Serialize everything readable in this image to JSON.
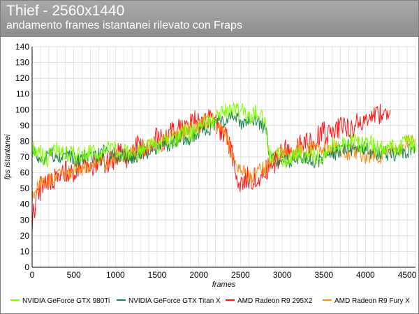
{
  "chart_data": {
    "type": "line",
    "title": "Thief - 2560x1440",
    "subtitle": "andamento frames istantanei rilevato con Fraps",
    "xlabel": "frames",
    "ylabel": "fps istantanei",
    "xlim": [
      0,
      4600
    ],
    "ylim": [
      0,
      140
    ],
    "x_ticks": [
      "0",
      "500",
      "1000",
      "1500",
      "2000",
      "2500",
      "3000",
      "3500",
      "4000",
      "4500"
    ],
    "y_ticks": [
      "0",
      "10",
      "20",
      "30",
      "40",
      "50",
      "60",
      "70",
      "80",
      "90",
      "100",
      "110",
      "120",
      "130",
      "140"
    ],
    "grid": true,
    "legend_position": "bottom",
    "series": [
      {
        "name": "NVIDIA GeForce GTX 980Ti",
        "color": "#7fff00",
        "x": [
          0,
          100,
          200,
          300,
          400,
          500,
          600,
          700,
          800,
          900,
          1000,
          1100,
          1200,
          1300,
          1400,
          1500,
          1600,
          1700,
          1800,
          1900,
          2000,
          2100,
          2200,
          2300,
          2400,
          2500,
          2600,
          2700,
          2800,
          2850,
          2900,
          3000,
          3100,
          3200,
          3300,
          3400,
          3500,
          3600,
          3700,
          3800,
          3900,
          4000,
          4100,
          4200,
          4300,
          4400,
          4500,
          4600
        ],
        "y": [
          75,
          72,
          70,
          73,
          74,
          70,
          72,
          71,
          73,
          76,
          74,
          72,
          73,
          74,
          76,
          78,
          80,
          82,
          84,
          86,
          88,
          92,
          95,
          99,
          100,
          98,
          97,
          98,
          93,
          70,
          71,
          70,
          68,
          72,
          71,
          70,
          72,
          75,
          78,
          80,
          80,
          78,
          77,
          75,
          76,
          75,
          78,
          80
        ]
      },
      {
        "name": "NVIDIA GeForce GTX Titan X",
        "color": "#1e8449",
        "x": [
          0,
          100,
          200,
          300,
          400,
          500,
          600,
          700,
          800,
          900,
          1000,
          1100,
          1200,
          1300,
          1400,
          1500,
          1600,
          1700,
          1800,
          1900,
          2000,
          2100,
          2200,
          2300,
          2400,
          2500,
          2600,
          2700,
          2800,
          2850,
          2900,
          3000,
          3100,
          3200,
          3300,
          3400,
          3500,
          3600,
          3700,
          3800,
          3900,
          4000,
          4100,
          4200,
          4300,
          4400,
          4500,
          4600
        ],
        "y": [
          72,
          71,
          70,
          72,
          70,
          69,
          70,
          70,
          72,
          73,
          72,
          70,
          71,
          72,
          74,
          75,
          77,
          79,
          81,
          83,
          85,
          88,
          90,
          93,
          95,
          93,
          92,
          93,
          90,
          68,
          69,
          68,
          66,
          70,
          69,
          68,
          70,
          72,
          75,
          76,
          76,
          75,
          74,
          72,
          73,
          72,
          74,
          77
        ]
      },
      {
        "name": "AMD Radeon R9 295X2",
        "color": "#ff1a1a",
        "x": [
          0,
          50,
          100,
          200,
          300,
          400,
          500,
          600,
          700,
          800,
          900,
          1000,
          1100,
          1200,
          1300,
          1400,
          1500,
          1600,
          1700,
          1800,
          1900,
          2000,
          2100,
          2200,
          2300,
          2400,
          2500,
          2600,
          2700,
          2800,
          2850,
          2900,
          3000,
          3100,
          3200,
          3300,
          3400,
          3500,
          3600,
          3700,
          3800,
          3900,
          4000,
          4100,
          4200,
          4300
        ],
        "y": [
          30,
          45,
          50,
          55,
          58,
          60,
          62,
          63,
          64,
          66,
          67,
          70,
          71,
          73,
          76,
          78,
          80,
          83,
          86,
          88,
          90,
          92,
          93,
          93,
          85,
          70,
          55,
          55,
          58,
          60,
          63,
          68,
          72,
          75,
          77,
          80,
          82,
          84,
          86,
          87,
          89,
          90,
          92,
          94,
          97,
          100
        ]
      },
      {
        "name": "AMD Radeon R9 Fury X",
        "color": "#ff8c1a",
        "x": [
          0,
          50,
          100,
          200,
          300,
          400,
          500,
          600,
          700,
          800,
          900,
          1000,
          1100,
          1200,
          1300,
          1400,
          1500,
          1600,
          1700,
          1800,
          1900,
          2000,
          2100,
          2200,
          2300,
          2400,
          2500,
          2600,
          2700,
          2800,
          2850,
          2900,
          3000,
          3100,
          3200,
          3300,
          3400,
          3500,
          3600,
          3700,
          3800,
          3900,
          4000,
          4100,
          4200,
          4300,
          4400,
          4500,
          4600
        ],
        "y": [
          45,
          50,
          52,
          56,
          58,
          60,
          62,
          63,
          65,
          66,
          67,
          69,
          70,
          72,
          74,
          76,
          78,
          80,
          83,
          85,
          88,
          90,
          92,
          92,
          86,
          72,
          60,
          58,
          60,
          62,
          66,
          70,
          72,
          73,
          74,
          75,
          76,
          76,
          75,
          74,
          73,
          72,
          70,
          70,
          72,
          74,
          76,
          78,
          80
        ]
      }
    ]
  }
}
